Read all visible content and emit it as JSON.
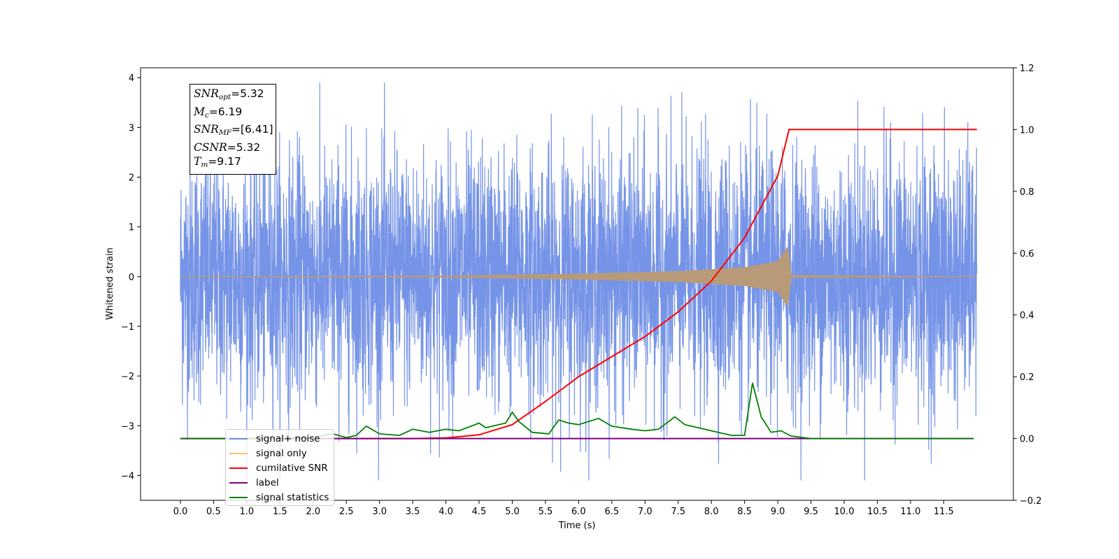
{
  "chart_data": {
    "type": "line",
    "xlabel": "Time (s)",
    "ylabel": "Whitened strain",
    "xlim": [
      -0.6,
      12.55
    ],
    "ylim": [
      -4.5,
      4.2
    ],
    "y2lim": [
      -0.2,
      1.2
    ],
    "x_ticks": [
      "0.0",
      "0.5",
      "1.0",
      "1.5",
      "2.0",
      "2.5",
      "3.0",
      "3.5",
      "4.0",
      "4.5",
      "5.0",
      "5.5",
      "6.0",
      "6.5",
      "7.0",
      "7.5",
      "8.0",
      "8.5",
      "9.0",
      "9.5",
      "10.0",
      "10.5",
      "11.0",
      "11.5"
    ],
    "y_ticks": [
      "4",
      "3",
      "2",
      "1",
      "0",
      "−1",
      "−2",
      "−3",
      "−4"
    ],
    "y2_ticks": [
      "1.2",
      "1.0",
      "0.8",
      "0.6",
      "0.4",
      "0.2",
      "0.0",
      "−0.2"
    ],
    "grid": false,
    "legend_placement": "lower-left",
    "series": [
      {
        "name": "signal+ noise",
        "color": "#6f8ee6",
        "axis": "left",
        "description_values": {
          "x_range": [
            0.0,
            12.0
          ],
          "typical_amplitude": 1.5,
          "max_peaks": [
            3.8,
            3.7,
            -4.1,
            -4.05
          ]
        }
      },
      {
        "name": "signal only",
        "color": "#ffbe6a",
        "axis": "left",
        "envelope": {
          "x": [
            0.0,
            4.0,
            6.0,
            7.5,
            8.5,
            9.0,
            9.15,
            9.17,
            9.2,
            12.0
          ],
          "y": [
            0.0,
            0.01,
            0.05,
            0.1,
            0.18,
            0.3,
            0.6,
            0.35,
            0.02,
            0.0
          ]
        }
      },
      {
        "name": "cumilative SNR",
        "color": "#ff0000",
        "axis": "right",
        "x": [
          0.0,
          3.5,
          4.0,
          4.5,
          5.0,
          5.5,
          6.0,
          6.5,
          7.0,
          7.5,
          8.0,
          8.5,
          9.0,
          9.17,
          12.0
        ],
        "y": [
          0.0,
          0.0,
          0.002,
          0.012,
          0.045,
          0.12,
          0.2,
          0.265,
          0.33,
          0.41,
          0.51,
          0.65,
          0.85,
          1.0,
          1.0
        ]
      },
      {
        "name": "label",
        "color": "#800080",
        "axis": "right",
        "x": [
          0.0,
          11.95
        ],
        "y": [
          0.0,
          0.0
        ]
      },
      {
        "name": "signal statistics",
        "color": "#008000",
        "axis": "right",
        "x": [
          0.0,
          1.0,
          1.5,
          2.0,
          2.3,
          2.5,
          2.65,
          2.8,
          3.0,
          3.3,
          3.5,
          3.75,
          4.0,
          4.2,
          4.5,
          4.6,
          4.7,
          4.9,
          5.0,
          5.1,
          5.3,
          5.55,
          5.7,
          5.85,
          6.0,
          6.3,
          6.5,
          6.8,
          7.0,
          7.2,
          7.45,
          7.6,
          7.8,
          8.0,
          8.3,
          8.5,
          8.62,
          8.75,
          8.9,
          9.05,
          9.2,
          9.5,
          10.0,
          10.5,
          11.0,
          11.95
        ],
        "y": [
          0.0,
          0.0,
          0.0,
          0.005,
          0.015,
          0.003,
          0.01,
          0.04,
          0.015,
          0.01,
          0.03,
          0.02,
          0.03,
          0.025,
          0.05,
          0.035,
          0.04,
          0.05,
          0.085,
          0.055,
          0.02,
          0.015,
          0.06,
          0.05,
          0.045,
          0.065,
          0.04,
          0.03,
          0.025,
          0.03,
          0.07,
          0.045,
          0.035,
          0.025,
          0.01,
          0.01,
          0.18,
          0.07,
          0.02,
          0.025,
          0.008,
          0.0,
          0.0,
          0.0,
          0.0,
          0.0
        ]
      }
    ]
  },
  "stats": [
    {
      "symbol": "SNR",
      "sub": "opt",
      "value": "=5.32"
    },
    {
      "symbol": "M",
      "sub": "c",
      "value": "=6.19"
    },
    {
      "symbol": "SNR",
      "sub": "MF",
      "value": "=[6.41]"
    },
    {
      "symbol": "CSNR",
      "sub": "",
      "value": "=5.32"
    },
    {
      "symbol": "T",
      "sub": "m",
      "value": "=9.17"
    }
  ]
}
